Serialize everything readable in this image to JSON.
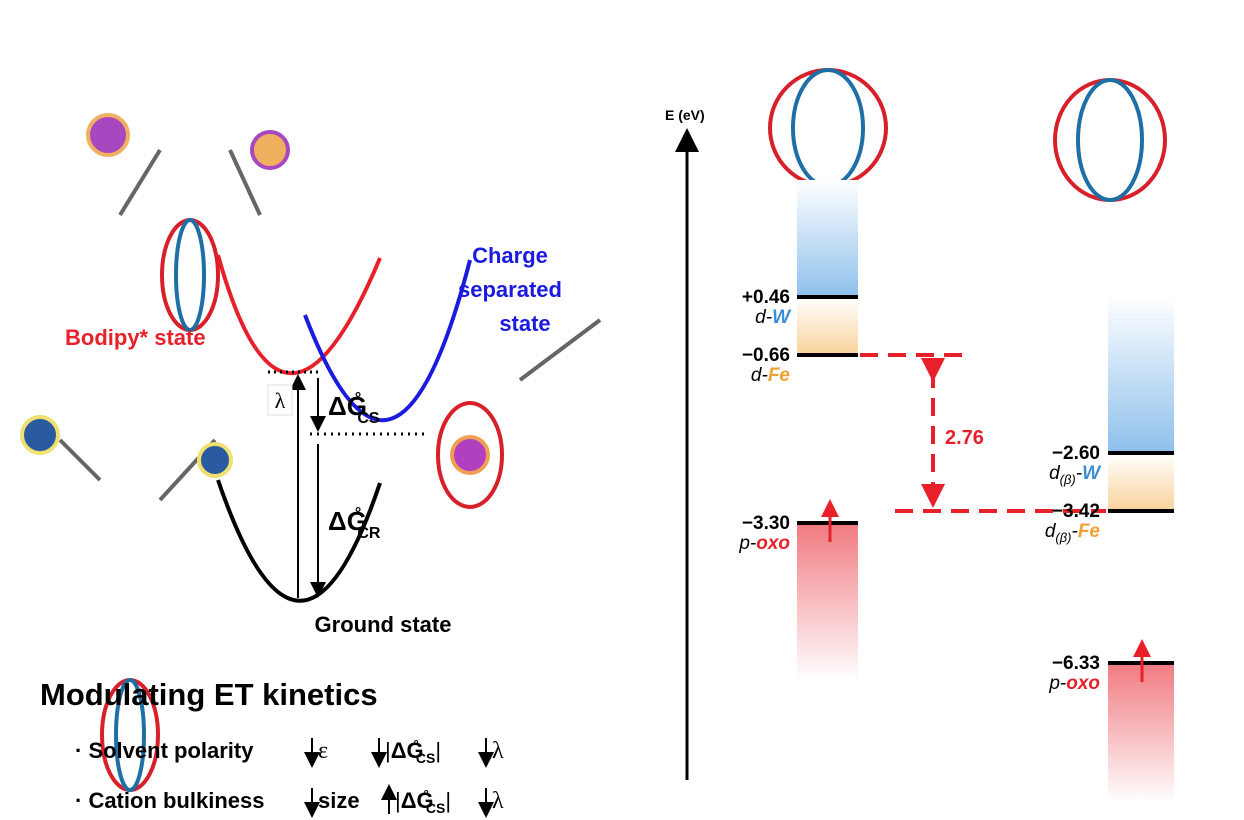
{
  "left_panel": {
    "bodipy_state": "Bodipy* state",
    "charge_separated_state": [
      "Charge",
      "separated",
      "state"
    ],
    "ground_state": "Ground state",
    "lambda": "λ",
    "dg_cs": {
      "symbol": "ΔG",
      "degree": "°",
      "sub": "CS"
    },
    "dg_cr": {
      "symbol": "ΔG",
      "degree": "°",
      "sub": "CR"
    }
  },
  "kinetics": {
    "title": "Modulating ET kinetics",
    "rows": [
      {
        "label": "· Solvent polarity",
        "effects": [
          "ε",
          {
            "open": "|",
            "symbol": "ΔG",
            "degree": "°",
            "sub": "CS",
            "close": "|"
          },
          "λ"
        ]
      },
      {
        "label": "· Cation bulkiness",
        "effects": [
          "size",
          {
            "open": "|",
            "symbol": "ΔG",
            "degree": "°",
            "sub": "CS",
            "close": "|"
          },
          "λ"
        ]
      }
    ]
  },
  "energy_diagram": {
    "axis_label": "E (eV)",
    "gap": "2.76",
    "columns": [
      {
        "levels": [
          {
            "energy": "+0.46",
            "orbital": {
              "prefix": "d-",
              "element": "W"
            }
          },
          {
            "energy": "−0.66",
            "orbital": {
              "prefix": "d-",
              "element": "Fe"
            }
          },
          {
            "energy": "−3.30",
            "orbital": {
              "prefix": "p-",
              "element": "oxo"
            }
          }
        ]
      },
      {
        "levels": [
          {
            "energy": "−2.60",
            "orbital": {
              "prefix": "d",
              "sub": "(β)",
              "dash": "-",
              "element": "W"
            }
          },
          {
            "energy": "−3.42",
            "orbital": {
              "prefix": "d",
              "sub": "(β)",
              "dash": "-",
              "element": "Fe"
            }
          },
          {
            "energy": "−6.33",
            "orbital": {
              "prefix": "p-",
              "element": "oxo"
            }
          }
        ]
      }
    ]
  }
}
